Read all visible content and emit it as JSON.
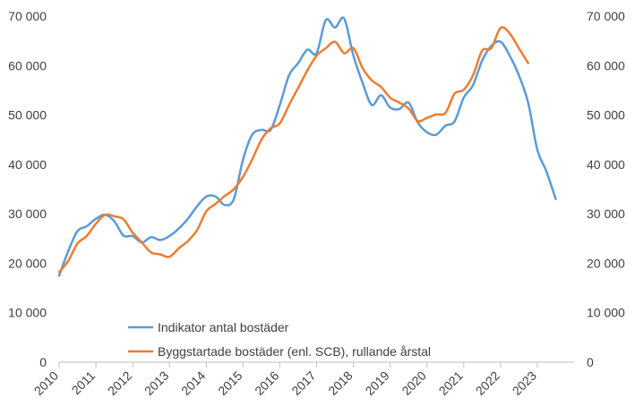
{
  "chart_data": {
    "type": "line",
    "y_ticks": [
      "0",
      "10 000",
      "20 000",
      "30 000",
      "40 000",
      "50 000",
      "60 000",
      "70 000"
    ],
    "y_values": [
      0,
      10000,
      20000,
      30000,
      40000,
      50000,
      60000,
      70000
    ],
    "ylim": [
      0,
      70000
    ],
    "x_ticks": [
      "2010",
      "2011",
      "2012",
      "2013",
      "2014",
      "2015",
      "2016",
      "2017",
      "2018",
      "2019",
      "2020",
      "2021",
      "2022",
      "2023"
    ],
    "xlim": [
      2010,
      2024
    ],
    "grid": "none",
    "legend_position": "bottom-left inside plot",
    "series": [
      {
        "name": "Indikator antal bostäder",
        "color": "#5B9BD5",
        "points": [
          [
            2010.0,
            17500
          ],
          [
            2010.25,
            22500
          ],
          [
            2010.5,
            26500
          ],
          [
            2010.75,
            27500
          ],
          [
            2011.0,
            29000
          ],
          [
            2011.25,
            29800
          ],
          [
            2011.5,
            28500
          ],
          [
            2011.75,
            25600
          ],
          [
            2012.0,
            25500
          ],
          [
            2012.25,
            24200
          ],
          [
            2012.5,
            25300
          ],
          [
            2012.75,
            24700
          ],
          [
            2013.0,
            25500
          ],
          [
            2013.25,
            27000
          ],
          [
            2013.5,
            29000
          ],
          [
            2013.75,
            31500
          ],
          [
            2014.0,
            33500
          ],
          [
            2014.25,
            33500
          ],
          [
            2014.5,
            31800
          ],
          [
            2014.75,
            33000
          ],
          [
            2015.0,
            41000
          ],
          [
            2015.25,
            46000
          ],
          [
            2015.5,
            47000
          ],
          [
            2015.75,
            47000
          ],
          [
            2016.0,
            52000
          ],
          [
            2016.25,
            58000
          ],
          [
            2016.5,
            60500
          ],
          [
            2016.75,
            63200
          ],
          [
            2017.0,
            62500
          ],
          [
            2017.25,
            69200
          ],
          [
            2017.5,
            67700
          ],
          [
            2017.75,
            69500
          ],
          [
            2018.0,
            62000
          ],
          [
            2018.25,
            56500
          ],
          [
            2018.5,
            52000
          ],
          [
            2018.75,
            54000
          ],
          [
            2019.0,
            51500
          ],
          [
            2019.25,
            51200
          ],
          [
            2019.5,
            52500
          ],
          [
            2019.75,
            48500
          ],
          [
            2020.0,
            46500
          ],
          [
            2020.25,
            46000
          ],
          [
            2020.5,
            47800
          ],
          [
            2020.75,
            48700
          ],
          [
            2021.0,
            53500
          ],
          [
            2021.25,
            56000
          ],
          [
            2021.5,
            61000
          ],
          [
            2021.75,
            64000
          ],
          [
            2022.0,
            64800
          ],
          [
            2022.25,
            62000
          ],
          [
            2022.5,
            58000
          ],
          [
            2022.75,
            52500
          ],
          [
            2023.0,
            43000
          ],
          [
            2023.25,
            38500
          ],
          [
            2023.5,
            33000
          ]
        ]
      },
      {
        "name": "Byggstartade bostäder (enl. SCB), rullande årstal",
        "color": "#ED7D31",
        "points": [
          [
            2010.0,
            18200
          ],
          [
            2010.25,
            20500
          ],
          [
            2010.5,
            24000
          ],
          [
            2010.75,
            25500
          ],
          [
            2011.0,
            28000
          ],
          [
            2011.25,
            29800
          ],
          [
            2011.5,
            29500
          ],
          [
            2011.75,
            28900
          ],
          [
            2012.0,
            26200
          ],
          [
            2012.25,
            24200
          ],
          [
            2012.5,
            22200
          ],
          [
            2012.75,
            21800
          ],
          [
            2013.0,
            21300
          ],
          [
            2013.25,
            23000
          ],
          [
            2013.5,
            24500
          ],
          [
            2013.75,
            26700
          ],
          [
            2014.0,
            30500
          ],
          [
            2014.25,
            32000
          ],
          [
            2014.5,
            33600
          ],
          [
            2014.75,
            35000
          ],
          [
            2015.0,
            37500
          ],
          [
            2015.25,
            41000
          ],
          [
            2015.5,
            45000
          ],
          [
            2015.75,
            47300
          ],
          [
            2016.0,
            48300
          ],
          [
            2016.25,
            52000
          ],
          [
            2016.5,
            55500
          ],
          [
            2016.75,
            59000
          ],
          [
            2017.0,
            62000
          ],
          [
            2017.25,
            63500
          ],
          [
            2017.5,
            64800
          ],
          [
            2017.75,
            62500
          ],
          [
            2018.0,
            63500
          ],
          [
            2018.25,
            59500
          ],
          [
            2018.5,
            57000
          ],
          [
            2018.75,
            55700
          ],
          [
            2019.0,
            53500
          ],
          [
            2019.25,
            52500
          ],
          [
            2019.5,
            51300
          ],
          [
            2019.75,
            48800
          ],
          [
            2020.0,
            49400
          ],
          [
            2020.25,
            50100
          ],
          [
            2020.5,
            50400
          ],
          [
            2020.75,
            54300
          ],
          [
            2021.0,
            55100
          ],
          [
            2021.25,
            58000
          ],
          [
            2021.5,
            63000
          ],
          [
            2021.75,
            63500
          ],
          [
            2022.0,
            67600
          ],
          [
            2022.25,
            66500
          ],
          [
            2022.5,
            63500
          ],
          [
            2022.75,
            60500
          ]
        ]
      }
    ]
  }
}
